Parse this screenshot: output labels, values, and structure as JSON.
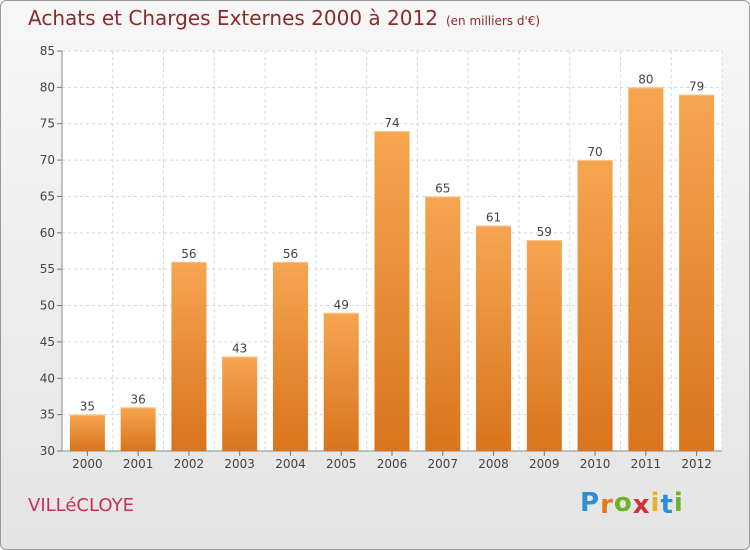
{
  "header": {
    "title": "Achats et Charges Externes 2000 à 2012",
    "subtitle": "(en milliers d'€)"
  },
  "footer": {
    "place": "VILLéCLOYE",
    "brand_letters": [
      "P",
      "r",
      "o",
      "x",
      "i",
      "t",
      "i"
    ],
    "brand_colors": [
      "#2f8fd0",
      "#e07b1e",
      "#6fb22a",
      "#d0313a",
      "#e8b320",
      "#2f8fd0",
      "#6fb22a"
    ]
  },
  "chart_data": {
    "type": "bar",
    "categories": [
      "2000",
      "2001",
      "2002",
      "2003",
      "2004",
      "2005",
      "2006",
      "2007",
      "2008",
      "2009",
      "2010",
      "2011",
      "2012"
    ],
    "values": [
      35,
      36,
      56,
      43,
      56,
      49,
      74,
      65,
      61,
      59,
      70,
      80,
      79
    ],
    "ylim": [
      30,
      85
    ],
    "yticks": [
      30,
      35,
      40,
      45,
      50,
      55,
      60,
      65,
      70,
      75,
      80,
      85
    ],
    "grid": true,
    "bar_color": "#f0923a"
  }
}
